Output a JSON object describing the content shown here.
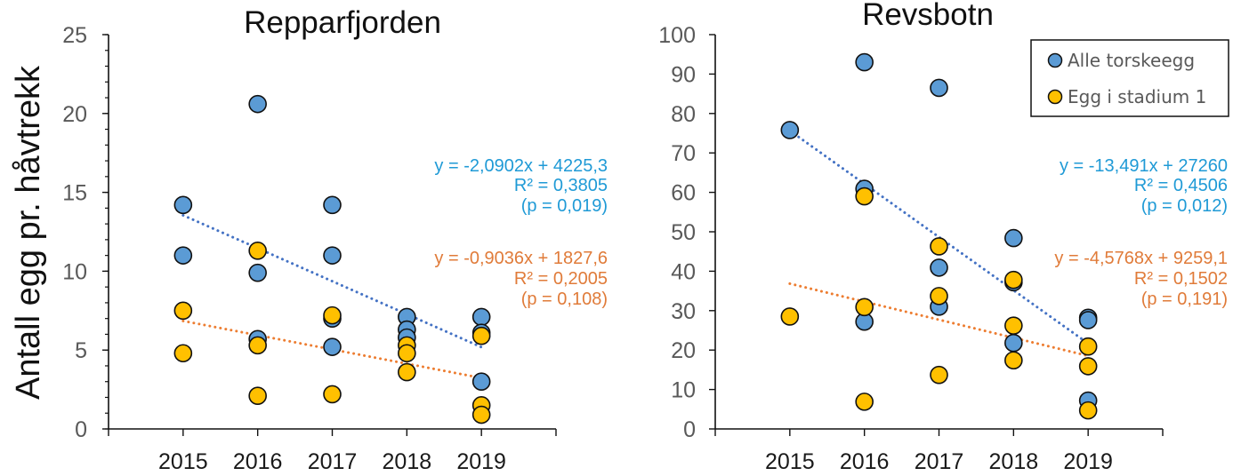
{
  "chart_data": [
    {
      "type": "scatter",
      "title": "Repparfjorden",
      "xlabel": "",
      "ylabel": "Antall egg pr. håvtrekk",
      "x_ticks": [
        "2015",
        "2016",
        "2017",
        "2018",
        "2019"
      ],
      "xlim": [
        2014,
        2020
      ],
      "ylim": [
        0,
        25
      ],
      "y_ticks": [
        0,
        5,
        10,
        15,
        20,
        25
      ],
      "y_minor_step": 1,
      "grid": false,
      "series": [
        {
          "name": "Alle torskeegg",
          "color": "#5b9bd5",
          "points": [
            {
              "x": 2015,
              "y": 14.2
            },
            {
              "x": 2015,
              "y": 11.0
            },
            {
              "x": 2016,
              "y": 20.6
            },
            {
              "x": 2016,
              "y": 9.9
            },
            {
              "x": 2016,
              "y": 5.7
            },
            {
              "x": 2017,
              "y": 14.2
            },
            {
              "x": 2017,
              "y": 11.0
            },
            {
              "x": 2017,
              "y": 7.0
            },
            {
              "x": 2017,
              "y": 5.2
            },
            {
              "x": 2018,
              "y": 7.1
            },
            {
              "x": 2018,
              "y": 6.3
            },
            {
              "x": 2018,
              "y": 5.8
            },
            {
              "x": 2019,
              "y": 7.1
            },
            {
              "x": 2019,
              "y": 6.1
            },
            {
              "x": 2019,
              "y": 3.0
            }
          ],
          "trendline": {
            "slope": -2.0902,
            "intercept": 4225.3,
            "color": "#4472c4"
          },
          "annotation": [
            "y = -2,0902x + 4225,3",
            "R² = 0,3805",
            "(p = 0,019)"
          ],
          "annotation_color": "#1f9ad6"
        },
        {
          "name": "Egg i stadium 1",
          "color": "#ffc000",
          "points": [
            {
              "x": 2015,
              "y": 7.5
            },
            {
              "x": 2015,
              "y": 4.8
            },
            {
              "x": 2016,
              "y": 11.3
            },
            {
              "x": 2016,
              "y": 5.3
            },
            {
              "x": 2016,
              "y": 2.1
            },
            {
              "x": 2017,
              "y": 7.2
            },
            {
              "x": 2017,
              "y": 2.2
            },
            {
              "x": 2018,
              "y": 5.3
            },
            {
              "x": 2018,
              "y": 4.8
            },
            {
              "x": 2018,
              "y": 3.6
            },
            {
              "x": 2019,
              "y": 5.9
            },
            {
              "x": 2019,
              "y": 1.5
            },
            {
              "x": 2019,
              "y": 0.9
            }
          ],
          "trendline": {
            "slope": -0.9036,
            "intercept": 1827.6,
            "color": "#ed7d31"
          },
          "annotation": [
            "y = -0,9036x + 1827,6",
            "R² = 0,2005",
            "(p = 0,108)"
          ],
          "annotation_color": "#e07b39"
        }
      ]
    },
    {
      "type": "scatter",
      "title": "Revsbotn",
      "xlabel": "",
      "ylabel": "",
      "x_ticks": [
        "2015",
        "2016",
        "2017",
        "2018",
        "2019"
      ],
      "xlim": [
        2014,
        2020
      ],
      "ylim": [
        0,
        100
      ],
      "y_ticks": [
        0,
        10,
        20,
        30,
        40,
        50,
        60,
        70,
        80,
        90,
        100
      ],
      "y_minor_step": null,
      "grid": false,
      "legend": {
        "position": "top-right",
        "entries": [
          "Alle torskeegg",
          "Egg i stadium 1"
        ]
      },
      "series": [
        {
          "name": "Alle torskeegg",
          "color": "#5b9bd5",
          "points": [
            {
              "x": 2015,
              "y": 75.8
            },
            {
              "x": 2016,
              "y": 93.0
            },
            {
              "x": 2016,
              "y": 60.9
            },
            {
              "x": 2016,
              "y": 27.2
            },
            {
              "x": 2017,
              "y": 86.5
            },
            {
              "x": 2017,
              "y": 40.9
            },
            {
              "x": 2017,
              "y": 31.0
            },
            {
              "x": 2018,
              "y": 48.4
            },
            {
              "x": 2018,
              "y": 37.2
            },
            {
              "x": 2018,
              "y": 21.8
            },
            {
              "x": 2019,
              "y": 28.2
            },
            {
              "x": 2019,
              "y": 27.6
            },
            {
              "x": 2019,
              "y": 7.2
            }
          ],
          "trendline": {
            "slope": -13.491,
            "intercept": 27260,
            "color": "#4472c4"
          },
          "annotation": [
            "y = -13,491x + 27260",
            "R² = 0,4506",
            "(p = 0,012)"
          ],
          "annotation_color": "#1f9ad6"
        },
        {
          "name": "Egg i stadium 1",
          "color": "#ffc000",
          "points": [
            {
              "x": 2015,
              "y": 28.5
            },
            {
              "x": 2016,
              "y": 59.0
            },
            {
              "x": 2016,
              "y": 30.9
            },
            {
              "x": 2016,
              "y": 6.9
            },
            {
              "x": 2017,
              "y": 46.3
            },
            {
              "x": 2017,
              "y": 33.7
            },
            {
              "x": 2017,
              "y": 13.7
            },
            {
              "x": 2018,
              "y": 37.8
            },
            {
              "x": 2018,
              "y": 26.2
            },
            {
              "x": 2018,
              "y": 17.4
            },
            {
              "x": 2019,
              "y": 20.9
            },
            {
              "x": 2019,
              "y": 15.9
            },
            {
              "x": 2019,
              "y": 4.7
            }
          ],
          "trendline": {
            "slope": -4.5768,
            "intercept": 9259.1,
            "color": "#ed7d31"
          },
          "annotation": [
            "y = -4,5768x + 9259,1",
            "R² = 0,1502",
            "(p = 0,191)"
          ],
          "annotation_color": "#e07b39"
        }
      ]
    }
  ]
}
